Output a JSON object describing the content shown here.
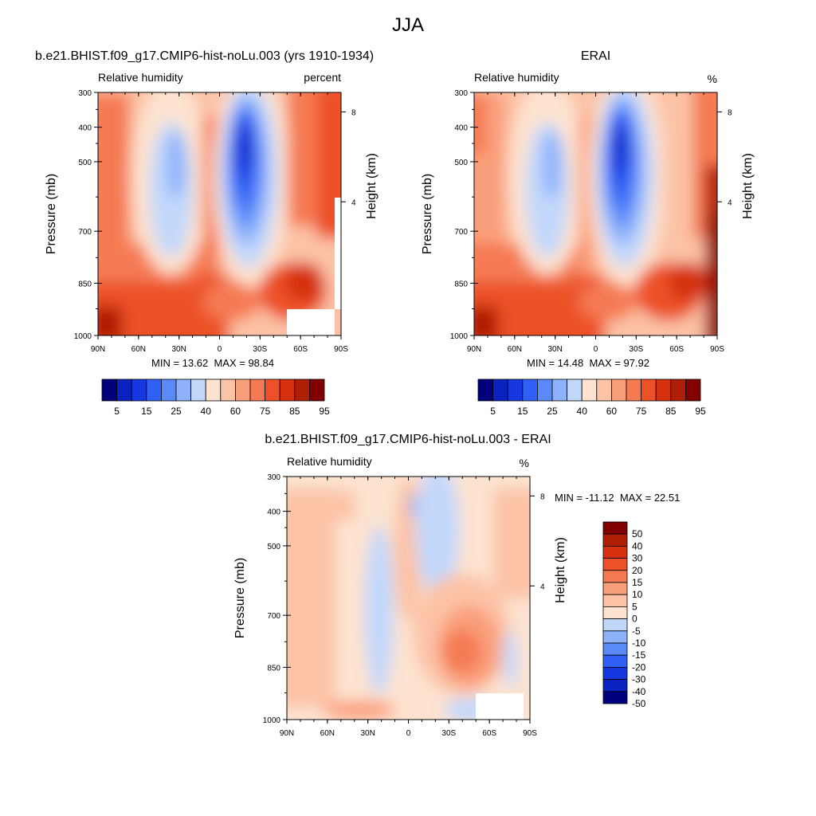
{
  "page": {
    "title": "JJA"
  },
  "colors": {
    "abs_palette": [
      "#00007f",
      "#0a22bf",
      "#1638e0",
      "#3060f5",
      "#5a8af8",
      "#8eb2fa",
      "#c2d8fb",
      "#fde3d0",
      "#fcc2a6",
      "#fa9f7c",
      "#f57a52",
      "#ec5128",
      "#d6310f",
      "#b01e06",
      "#820000"
    ],
    "diff_palette": [
      "#00007f",
      "#0a22bf",
      "#1638e0",
      "#3060f5",
      "#5a8af8",
      "#8eb2fa",
      "#c2d8fb",
      "#fde3d0",
      "#fcc2a6",
      "#fa9f7c",
      "#f57a52",
      "#ec5128",
      "#d6310f",
      "#b01e06",
      "#820000"
    ]
  },
  "chart_data": [
    {
      "type": "heatmap",
      "id": "model",
      "title": "b.e21.BHIST.f09_g17.CMIP6-hist-noLu.003 (yrs 1910-1934)",
      "left_label": "Relative humidity",
      "right_label": "percent",
      "xlabel": "",
      "ylabel": "Pressure (mb)",
      "y2label": "Height (km)",
      "x_ticks": [
        "90N",
        "60N",
        "30N",
        "0",
        "30S",
        "60S",
        "90S"
      ],
      "y_ticks": [
        "300",
        "400",
        "500",
        "700",
        "850",
        "1000"
      ],
      "y2_ticks": [
        "8",
        "4"
      ],
      "stats": {
        "min_label": "MIN =",
        "min": "13.62",
        "max_label": "MAX =",
        "max": "98.84"
      },
      "levels": [
        "5",
        "15",
        "25",
        "40",
        "60",
        "75",
        "85",
        "95"
      ],
      "missing_region": "lower-right near 60S-90S, 900-1000 mb"
    },
    {
      "type": "heatmap",
      "id": "obs",
      "title": "ERAI",
      "left_label": "Relative humidity",
      "right_label": "%",
      "xlabel": "",
      "ylabel": "Pressure (mb)",
      "y2label": "Height (km)",
      "x_ticks": [
        "90N",
        "60N",
        "30N",
        "0",
        "30S",
        "60S",
        "90S"
      ],
      "y_ticks": [
        "300",
        "400",
        "500",
        "700",
        "850",
        "1000"
      ],
      "y2_ticks": [
        "8",
        "4"
      ],
      "stats": {
        "min_label": "MIN =",
        "min": "14.48",
        "max_label": "MAX =",
        "max": "97.92"
      },
      "levels": [
        "5",
        "15",
        "25",
        "40",
        "60",
        "75",
        "85",
        "95"
      ]
    },
    {
      "type": "heatmap",
      "id": "diff",
      "title": "b.e21.BHIST.f09_g17.CMIP6-hist-noLu.003 - ERAI",
      "left_label": "Relative humidity",
      "right_label": "%",
      "xlabel": "",
      "ylabel": "Pressure (mb)",
      "y2label": "Height (km)",
      "x_ticks": [
        "90N",
        "60N",
        "30N",
        "0",
        "30S",
        "60S",
        "90S"
      ],
      "y_ticks": [
        "300",
        "400",
        "500",
        "700",
        "850",
        "1000"
      ],
      "y2_ticks": [
        "8",
        "4"
      ],
      "stats": {
        "min_label": "MIN =",
        "min": "-11.12",
        "max_label": "MAX =",
        "max": "22.51"
      },
      "levels": [
        "50",
        "40",
        "30",
        "20",
        "15",
        "10",
        "5",
        "0",
        "-5",
        "-10",
        "-15",
        "-20",
        "-30",
        "-40",
        "-50"
      ],
      "missing_region": "lower-right near 50S-90S, 930-1000 mb"
    }
  ]
}
